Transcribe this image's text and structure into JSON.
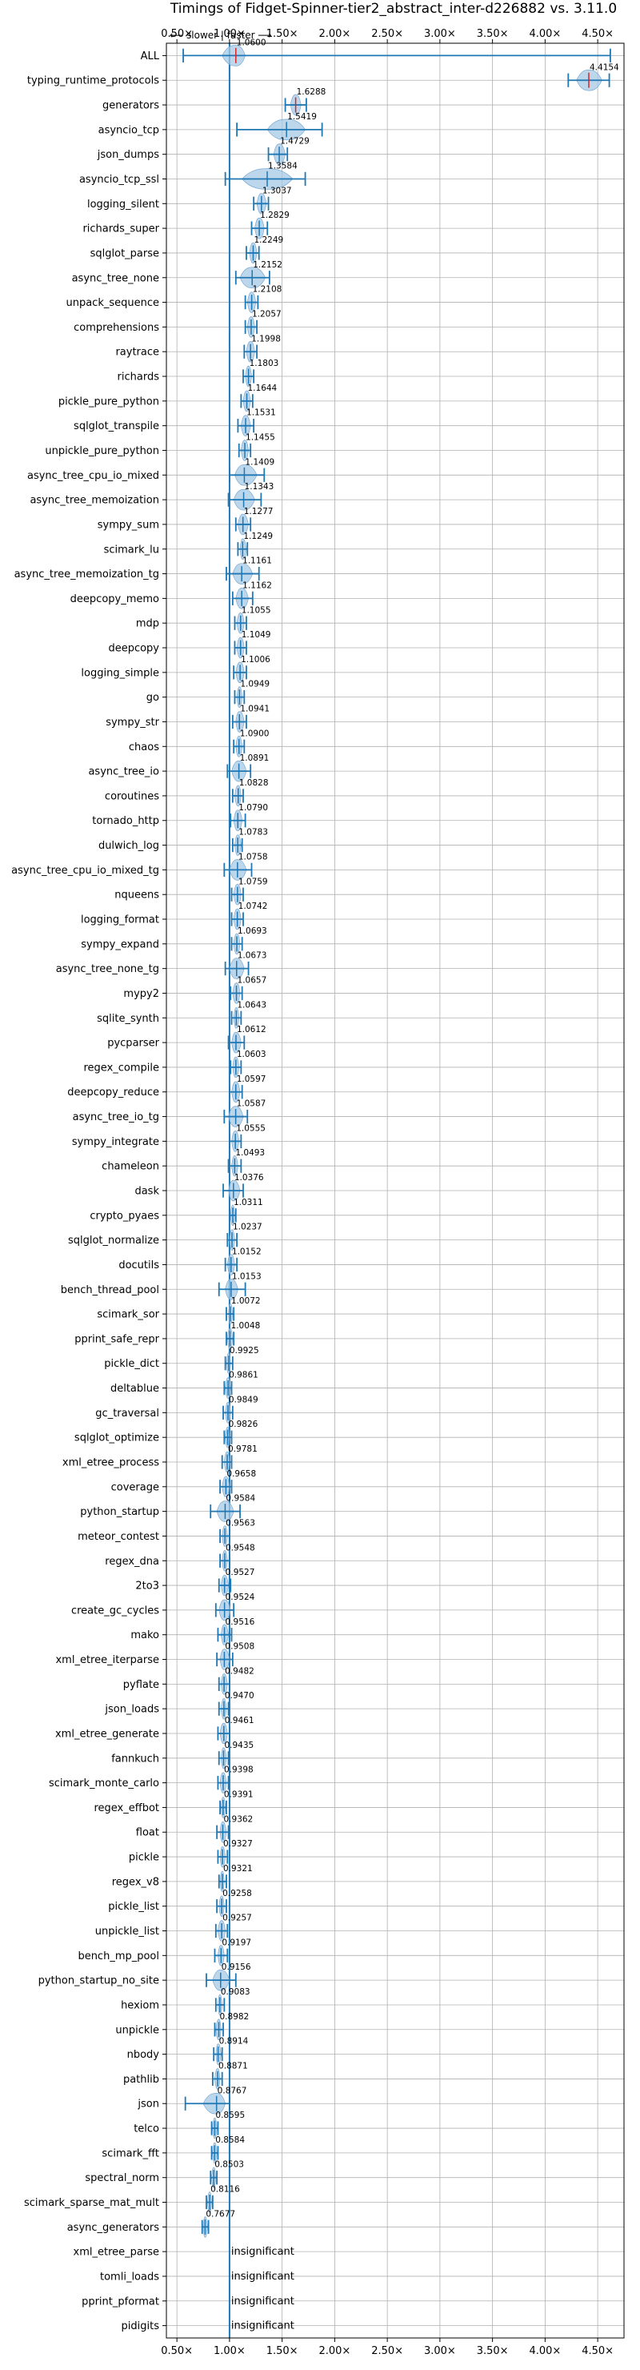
{
  "chart_data": {
    "type": "violin",
    "title": "Timings of Fidget-Spinner-tier2_abstract_inter-d226882 vs. 3.11.0",
    "direction_hint": "⟵ slower | faster ⟶",
    "xlim": [
      0.4,
      4.75
    ],
    "x_ticks": [
      0.5,
      1.0,
      1.5,
      2.0,
      2.5,
      3.0,
      3.5,
      4.0,
      4.5
    ],
    "x_tick_labels": [
      "0.50×",
      "1.00×",
      "1.50×",
      "2.00×",
      "2.50×",
      "3.00×",
      "3.50×",
      "4.00×",
      "4.50×"
    ],
    "reference_line": 1.0,
    "grid": true,
    "insignificant_label": "insignificant",
    "benchmarks": [
      {
        "name": "ALL",
        "value": 1.06,
        "label": "1.0600",
        "lo": 0.56,
        "hi": 4.62,
        "wl": 0.93,
        "wr": 1.15,
        "spread": 0.1
      },
      {
        "name": "typing_runtime_protocols",
        "value": 4.4154,
        "label": "4.4154",
        "lo": 4.22,
        "hi": 4.61,
        "wl": 4.3,
        "wr": 4.54,
        "spread": 0.1
      },
      {
        "name": "generators",
        "value": 1.6288,
        "label": "1.6288",
        "lo": 1.53,
        "hi": 1.73,
        "wl": 1.58,
        "wr": 1.68,
        "spread": 0.1
      },
      {
        "name": "asyncio_tcp",
        "value": 1.5419,
        "label": "1.5419",
        "lo": 1.07,
        "hi": 1.88,
        "wl": 1.36,
        "wr": 1.72,
        "spread": 0.1
      },
      {
        "name": "json_dumps",
        "value": 1.4729,
        "label": "1.4729",
        "lo": 1.37,
        "hi": 1.55,
        "wl": 1.42,
        "wr": 1.53,
        "spread": 0.1
      },
      {
        "name": "asyncio_tcp_ssl",
        "value": 1.3584,
        "label": "1.3584",
        "lo": 0.96,
        "hi": 1.72,
        "wl": 1.12,
        "wr": 1.6,
        "spread": 0.1
      },
      {
        "name": "logging_silent",
        "value": 1.3037,
        "label": "1.3037",
        "lo": 1.23,
        "hi": 1.37,
        "wl": 1.26,
        "wr": 1.35,
        "spread": 0.1
      },
      {
        "name": "richards_super",
        "value": 1.2829,
        "label": "1.2829",
        "lo": 1.21,
        "hi": 1.36,
        "wl": 1.24,
        "wr": 1.33,
        "spread": 0.1
      },
      {
        "name": "sqlglot_parse",
        "value": 1.2249,
        "label": "1.2249",
        "lo": 1.16,
        "hi": 1.28,
        "wl": 1.19,
        "wr": 1.26,
        "spread": 0.1
      },
      {
        "name": "async_tree_none",
        "value": 1.2152,
        "label": "1.2152",
        "lo": 1.06,
        "hi": 1.38,
        "wl": 1.1,
        "wr": 1.34,
        "spread": 0.1
      },
      {
        "name": "unpack_sequence",
        "value": 1.2108,
        "label": "1.2108",
        "lo": 1.15,
        "hi": 1.27,
        "wl": 1.17,
        "wr": 1.25,
        "spread": 0.1
      },
      {
        "name": "comprehensions",
        "value": 1.2057,
        "label": "1.2057",
        "lo": 1.15,
        "hi": 1.26,
        "wl": 1.17,
        "wr": 1.24,
        "spread": 0.1
      },
      {
        "name": "raytrace",
        "value": 1.1998,
        "label": "1.1998",
        "lo": 1.14,
        "hi": 1.26,
        "wl": 1.16,
        "wr": 1.24,
        "spread": 0.1
      },
      {
        "name": "richards",
        "value": 1.1803,
        "label": "1.1803",
        "lo": 1.13,
        "hi": 1.23,
        "wl": 1.15,
        "wr": 1.21,
        "spread": 0.1
      },
      {
        "name": "pickle_pure_python",
        "value": 1.1644,
        "label": "1.1644",
        "lo": 1.11,
        "hi": 1.22,
        "wl": 1.13,
        "wr": 1.2,
        "spread": 0.1
      },
      {
        "name": "sqlglot_transpile",
        "value": 1.1531,
        "label": "1.1531",
        "lo": 1.08,
        "hi": 1.23,
        "wl": 1.11,
        "wr": 1.2,
        "spread": 0.1
      },
      {
        "name": "unpickle_pure_python",
        "value": 1.1455,
        "label": "1.1455",
        "lo": 1.09,
        "hi": 1.2,
        "wl": 1.11,
        "wr": 1.18,
        "spread": 0.1
      },
      {
        "name": "async_tree_cpu_io_mixed",
        "value": 1.1409,
        "label": "1.1409",
        "lo": 1.0,
        "hi": 1.33,
        "wl": 1.05,
        "wr": 1.26,
        "spread": 0.1
      },
      {
        "name": "async_tree_memoization",
        "value": 1.1343,
        "label": "1.1343",
        "lo": 0.99,
        "hi": 1.3,
        "wl": 1.04,
        "wr": 1.24,
        "spread": 0.1
      },
      {
        "name": "sympy_sum",
        "value": 1.1277,
        "label": "1.1277",
        "lo": 1.06,
        "hi": 1.2,
        "wl": 1.08,
        "wr": 1.18,
        "spread": 0.1
      },
      {
        "name": "scimark_lu",
        "value": 1.1249,
        "label": "1.1249",
        "lo": 1.08,
        "hi": 1.17,
        "wl": 1.1,
        "wr": 1.16,
        "spread": 0.1
      },
      {
        "name": "async_tree_memoization_tg",
        "value": 1.1161,
        "label": "1.1161",
        "lo": 0.97,
        "hi": 1.28,
        "wl": 1.03,
        "wr": 1.22,
        "spread": 0.1
      },
      {
        "name": "deepcopy_memo",
        "value": 1.1162,
        "label": "1.1162",
        "lo": 1.03,
        "hi": 1.22,
        "wl": 1.06,
        "wr": 1.18,
        "spread": 0.1
      },
      {
        "name": "mdp",
        "value": 1.1055,
        "label": "1.1055",
        "lo": 1.05,
        "hi": 1.16,
        "wl": 1.07,
        "wr": 1.14,
        "spread": 0.1
      },
      {
        "name": "deepcopy",
        "value": 1.1049,
        "label": "1.1049",
        "lo": 1.05,
        "hi": 1.16,
        "wl": 1.07,
        "wr": 1.14,
        "spread": 0.1
      },
      {
        "name": "logging_simple",
        "value": 1.1006,
        "label": "1.1006",
        "lo": 1.04,
        "hi": 1.16,
        "wl": 1.06,
        "wr": 1.14,
        "spread": 0.1
      },
      {
        "name": "go",
        "value": 1.0949,
        "label": "1.0949",
        "lo": 1.05,
        "hi": 1.14,
        "wl": 1.07,
        "wr": 1.12,
        "spread": 0.1
      },
      {
        "name": "sympy_str",
        "value": 1.0941,
        "label": "1.0941",
        "lo": 1.03,
        "hi": 1.16,
        "wl": 1.06,
        "wr": 1.14,
        "spread": 0.1
      },
      {
        "name": "chaos",
        "value": 1.09,
        "label": "1.0900",
        "lo": 1.04,
        "hi": 1.14,
        "wl": 1.06,
        "wr": 1.12,
        "spread": 0.1
      },
      {
        "name": "async_tree_io",
        "value": 1.0891,
        "label": "1.0891",
        "lo": 0.98,
        "hi": 1.2,
        "wl": 1.02,
        "wr": 1.16,
        "spread": 0.1
      },
      {
        "name": "coroutines",
        "value": 1.0828,
        "label": "1.0828",
        "lo": 1.03,
        "hi": 1.13,
        "wl": 1.05,
        "wr": 1.11,
        "spread": 0.1
      },
      {
        "name": "tornado_http",
        "value": 1.079,
        "label": "1.0790",
        "lo": 1.01,
        "hi": 1.15,
        "wl": 1.04,
        "wr": 1.12,
        "spread": 0.1
      },
      {
        "name": "dulwich_log",
        "value": 1.0783,
        "label": "1.0783",
        "lo": 1.03,
        "hi": 1.12,
        "wl": 1.05,
        "wr": 1.11,
        "spread": 0.1
      },
      {
        "name": "async_tree_cpu_io_mixed_tg",
        "value": 1.0758,
        "label": "1.0758",
        "lo": 0.95,
        "hi": 1.21,
        "wl": 1.0,
        "wr": 1.16,
        "spread": 0.1
      },
      {
        "name": "nqueens",
        "value": 1.0759,
        "label": "1.0759",
        "lo": 1.02,
        "hi": 1.13,
        "wl": 1.04,
        "wr": 1.11,
        "spread": 0.1
      },
      {
        "name": "logging_format",
        "value": 1.0742,
        "label": "1.0742",
        "lo": 1.02,
        "hi": 1.13,
        "wl": 1.04,
        "wr": 1.11,
        "spread": 0.1
      },
      {
        "name": "sympy_expand",
        "value": 1.0693,
        "label": "1.0693",
        "lo": 1.02,
        "hi": 1.12,
        "wl": 1.04,
        "wr": 1.1,
        "spread": 0.1
      },
      {
        "name": "async_tree_none_tg",
        "value": 1.0673,
        "label": "1.0673",
        "lo": 0.96,
        "hi": 1.18,
        "wl": 1.0,
        "wr": 1.14,
        "spread": 0.1
      },
      {
        "name": "mypy2",
        "value": 1.0657,
        "label": "1.0657",
        "lo": 1.01,
        "hi": 1.12,
        "wl": 1.03,
        "wr": 1.1,
        "spread": 0.1
      },
      {
        "name": "sqlite_synth",
        "value": 1.0643,
        "label": "1.0643",
        "lo": 1.02,
        "hi": 1.11,
        "wl": 1.04,
        "wr": 1.09,
        "spread": 0.1
      },
      {
        "name": "pycparser",
        "value": 1.0612,
        "label": "1.0612",
        "lo": 0.99,
        "hi": 1.14,
        "wl": 1.02,
        "wr": 1.11,
        "spread": 0.1
      },
      {
        "name": "regex_compile",
        "value": 1.0603,
        "label": "1.0603",
        "lo": 1.01,
        "hi": 1.11,
        "wl": 1.03,
        "wr": 1.09,
        "spread": 0.1
      },
      {
        "name": "deepcopy_reduce",
        "value": 1.0597,
        "label": "1.0597",
        "lo": 1.0,
        "hi": 1.12,
        "wl": 1.02,
        "wr": 1.1,
        "spread": 0.1
      },
      {
        "name": "async_tree_io_tg",
        "value": 1.0587,
        "label": "1.0587",
        "lo": 0.95,
        "hi": 1.17,
        "wl": 0.99,
        "wr": 1.13,
        "spread": 0.1
      },
      {
        "name": "sympy_integrate",
        "value": 1.0555,
        "label": "1.0555",
        "lo": 1.0,
        "hi": 1.11,
        "wl": 1.02,
        "wr": 1.09,
        "spread": 0.1
      },
      {
        "name": "chameleon",
        "value": 1.0493,
        "label": "1.0493",
        "lo": 0.99,
        "hi": 1.11,
        "wl": 1.02,
        "wr": 1.08,
        "spread": 0.1
      },
      {
        "name": "dask",
        "value": 1.0376,
        "label": "1.0376",
        "lo": 0.94,
        "hi": 1.13,
        "wl": 0.99,
        "wr": 1.1,
        "spread": 0.1
      },
      {
        "name": "crypto_pyaes",
        "value": 1.0311,
        "label": "1.0311",
        "lo": 1.0,
        "hi": 1.06,
        "wl": 1.01,
        "wr": 1.05,
        "spread": 0.1
      },
      {
        "name": "sqlglot_normalize",
        "value": 1.0237,
        "label": "1.0237",
        "lo": 0.98,
        "hi": 1.07,
        "wl": 1.0,
        "wr": 1.05,
        "spread": 0.1
      },
      {
        "name": "docutils",
        "value": 1.0152,
        "label": "1.0152",
        "lo": 0.96,
        "hi": 1.07,
        "wl": 0.98,
        "wr": 1.05,
        "spread": 0.1
      },
      {
        "name": "bench_thread_pool",
        "value": 1.0153,
        "label": "1.0153",
        "lo": 0.9,
        "hi": 1.15,
        "wl": 0.96,
        "wr": 1.08,
        "spread": 0.1
      },
      {
        "name": "scimark_sor",
        "value": 1.0072,
        "label": "1.0072",
        "lo": 0.97,
        "hi": 1.04,
        "wl": 0.99,
        "wr": 1.03,
        "spread": 0.1
      },
      {
        "name": "pprint_safe_repr",
        "value": 1.0048,
        "label": "1.0048",
        "lo": 0.97,
        "hi": 1.04,
        "wl": 0.98,
        "wr": 1.03,
        "spread": 0.1
      },
      {
        "name": "pickle_dict",
        "value": 0.9925,
        "label": "0.9925",
        "lo": 0.96,
        "hi": 1.03,
        "wl": 0.97,
        "wr": 1.01,
        "spread": 0.1
      },
      {
        "name": "deltablue",
        "value": 0.9861,
        "label": "0.9861",
        "lo": 0.95,
        "hi": 1.02,
        "wl": 0.96,
        "wr": 1.01,
        "spread": 0.1
      },
      {
        "name": "gc_traversal",
        "value": 0.9849,
        "label": "0.9849",
        "lo": 0.94,
        "hi": 1.03,
        "wl": 0.96,
        "wr": 1.01,
        "spread": 0.1
      },
      {
        "name": "sqlglot_optimize",
        "value": 0.9826,
        "label": "0.9826",
        "lo": 0.95,
        "hi": 1.02,
        "wl": 0.96,
        "wr": 1.0,
        "spread": 0.1
      },
      {
        "name": "xml_etree_process",
        "value": 0.9781,
        "label": "0.9781",
        "lo": 0.93,
        "hi": 1.02,
        "wl": 0.95,
        "wr": 1.0,
        "spread": 0.1
      },
      {
        "name": "coverage",
        "value": 0.9658,
        "label": "0.9658",
        "lo": 0.91,
        "hi": 1.02,
        "wl": 0.93,
        "wr": 1.0,
        "spread": 0.1
      },
      {
        "name": "python_startup",
        "value": 0.9584,
        "label": "0.9584",
        "lo": 0.82,
        "hi": 1.1,
        "wl": 0.88,
        "wr": 1.04,
        "spread": 0.1
      },
      {
        "name": "meteor_contest",
        "value": 0.9563,
        "label": "0.9563",
        "lo": 0.91,
        "hi": 1.0,
        "wl": 0.93,
        "wr": 0.98,
        "spread": 0.1
      },
      {
        "name": "regex_dna",
        "value": 0.9548,
        "label": "0.9548",
        "lo": 0.91,
        "hi": 1.0,
        "wl": 0.93,
        "wr": 0.98,
        "spread": 0.1
      },
      {
        "name": "2to3",
        "value": 0.9527,
        "label": "0.9527",
        "lo": 0.9,
        "hi": 1.01,
        "wl": 0.92,
        "wr": 0.99,
        "spread": 0.1
      },
      {
        "name": "create_gc_cycles",
        "value": 0.9524,
        "label": "0.9524",
        "lo": 0.87,
        "hi": 1.04,
        "wl": 0.9,
        "wr": 1.01,
        "spread": 0.1
      },
      {
        "name": "mako",
        "value": 0.9516,
        "label": "0.9516",
        "lo": 0.89,
        "hi": 1.02,
        "wl": 0.92,
        "wr": 0.99,
        "spread": 0.1
      },
      {
        "name": "xml_etree_iterparse",
        "value": 0.9508,
        "label": "0.9508",
        "lo": 0.88,
        "hi": 1.03,
        "wl": 0.91,
        "wr": 1.0,
        "spread": 0.1
      },
      {
        "name": "pyflate",
        "value": 0.9482,
        "label": "0.9482",
        "lo": 0.9,
        "hi": 1.0,
        "wl": 0.92,
        "wr": 0.98,
        "spread": 0.1
      },
      {
        "name": "json_loads",
        "value": 0.947,
        "label": "0.9470",
        "lo": 0.9,
        "hi": 0.99,
        "wl": 0.92,
        "wr": 0.97,
        "spread": 0.1
      },
      {
        "name": "xml_etree_generate",
        "value": 0.9461,
        "label": "0.9461",
        "lo": 0.89,
        "hi": 1.0,
        "wl": 0.91,
        "wr": 0.98,
        "spread": 0.1
      },
      {
        "name": "fannkuch",
        "value": 0.9435,
        "label": "0.9435",
        "lo": 0.9,
        "hi": 0.99,
        "wl": 0.92,
        "wr": 0.97,
        "spread": 0.1
      },
      {
        "name": "scimark_monte_carlo",
        "value": 0.9398,
        "label": "0.9398",
        "lo": 0.89,
        "hi": 0.99,
        "wl": 0.91,
        "wr": 0.97,
        "spread": 0.1
      },
      {
        "name": "regex_effbot",
        "value": 0.9391,
        "label": "0.9391",
        "lo": 0.91,
        "hi": 0.97,
        "wl": 0.92,
        "wr": 0.96,
        "spread": 0.1
      },
      {
        "name": "float",
        "value": 0.9362,
        "label": "0.9362",
        "lo": 0.88,
        "hi": 0.99,
        "wl": 0.91,
        "wr": 0.97,
        "spread": 0.1
      },
      {
        "name": "pickle",
        "value": 0.9327,
        "label": "0.9327",
        "lo": 0.89,
        "hi": 0.98,
        "wl": 0.91,
        "wr": 0.96,
        "spread": 0.1
      },
      {
        "name": "regex_v8",
        "value": 0.9321,
        "label": "0.9321",
        "lo": 0.9,
        "hi": 0.97,
        "wl": 0.91,
        "wr": 0.95,
        "spread": 0.1
      },
      {
        "name": "pickle_list",
        "value": 0.9258,
        "label": "0.9258",
        "lo": 0.88,
        "hi": 0.97,
        "wl": 0.9,
        "wr": 0.95,
        "spread": 0.1
      },
      {
        "name": "unpickle_list",
        "value": 0.9257,
        "label": "0.9257",
        "lo": 0.87,
        "hi": 0.98,
        "wl": 0.89,
        "wr": 0.96,
        "spread": 0.1
      },
      {
        "name": "bench_mp_pool",
        "value": 0.9197,
        "label": "0.9197",
        "lo": 0.86,
        "hi": 0.98,
        "wl": 0.89,
        "wr": 0.95,
        "spread": 0.1
      },
      {
        "name": "python_startup_no_site",
        "value": 0.9156,
        "label": "0.9156",
        "lo": 0.78,
        "hi": 1.06,
        "wl": 0.84,
        "wr": 1.0,
        "spread": 0.1
      },
      {
        "name": "hexiom",
        "value": 0.9083,
        "label": "0.9083",
        "lo": 0.87,
        "hi": 0.95,
        "wl": 0.89,
        "wr": 0.93,
        "spread": 0.1
      },
      {
        "name": "unpickle",
        "value": 0.8982,
        "label": "0.8982",
        "lo": 0.86,
        "hi": 0.94,
        "wl": 0.87,
        "wr": 0.92,
        "spread": 0.1
      },
      {
        "name": "nbody",
        "value": 0.8914,
        "label": "0.8914",
        "lo": 0.85,
        "hi": 0.93,
        "wl": 0.87,
        "wr": 0.92,
        "spread": 0.1
      },
      {
        "name": "pathlib",
        "value": 0.8871,
        "label": "0.8871",
        "lo": 0.84,
        "hi": 0.93,
        "wl": 0.86,
        "wr": 0.91,
        "spread": 0.1
      },
      {
        "name": "json",
        "value": 0.8767,
        "label": "0.8767",
        "lo": 0.58,
        "hi": 1.0,
        "wl": 0.75,
        "wr": 0.96,
        "spread": 0.1
      },
      {
        "name": "telco",
        "value": 0.8595,
        "label": "0.8595",
        "lo": 0.83,
        "hi": 0.89,
        "wl": 0.84,
        "wr": 0.88,
        "spread": 0.1
      },
      {
        "name": "scimark_fft",
        "value": 0.8584,
        "label": "0.8584",
        "lo": 0.83,
        "hi": 0.89,
        "wl": 0.84,
        "wr": 0.88,
        "spread": 0.1
      },
      {
        "name": "spectral_norm",
        "value": 0.8503,
        "label": "0.8503",
        "lo": 0.82,
        "hi": 0.88,
        "wl": 0.83,
        "wr": 0.87,
        "spread": 0.1
      },
      {
        "name": "scimark_sparse_mat_mult",
        "value": 0.8116,
        "label": "0.8116",
        "lo": 0.78,
        "hi": 0.84,
        "wl": 0.79,
        "wr": 0.83,
        "spread": 0.1
      },
      {
        "name": "async_generators",
        "value": 0.7677,
        "label": "0.7677",
        "lo": 0.74,
        "hi": 0.8,
        "wl": 0.75,
        "wr": 0.79,
        "spread": 0.1
      },
      {
        "name": "xml_etree_parse",
        "value": null,
        "label": null,
        "insignificant": true
      },
      {
        "name": "tomli_loads",
        "value": null,
        "label": null,
        "insignificant": true
      },
      {
        "name": "pprint_pformat",
        "value": null,
        "label": null,
        "insignificant": true
      },
      {
        "name": "pidigits",
        "value": null,
        "label": null,
        "insignificant": true
      }
    ],
    "colors": {
      "violin_fill": "#a6c8e4",
      "violin_stroke": "#6fa3cf",
      "errorbar": "#1f77b4",
      "median_red": "#d62728",
      "reference": "#1f77b4",
      "grid": "#b0b0b0",
      "axis": "#000000",
      "text": "#000000"
    }
  }
}
